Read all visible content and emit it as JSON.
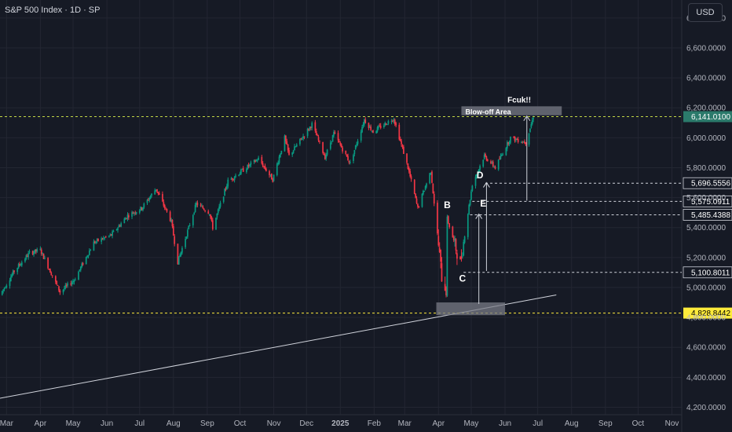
{
  "title": "S&P 500 Index · 1D · SP",
  "currency": "USD",
  "chart_data": {
    "type": "candlestick",
    "symbol": "S&P 500 Index",
    "interval": "1D",
    "exchange": "SP",
    "y_axis": {
      "ticks": [
        {
          "value": 4200,
          "label": "4,200.0000"
        },
        {
          "value": 4400,
          "label": "4,400.0000"
        },
        {
          "value": 4600,
          "label": "4,600.0000"
        },
        {
          "value": 4800,
          "label": "4,800.0000"
        },
        {
          "value": 5000,
          "label": "5,000.0000"
        },
        {
          "value": 5200,
          "label": "5,200.0000"
        },
        {
          "value": 5400,
          "label": "5,400.0000"
        },
        {
          "value": 5600,
          "label": "5,600.0000"
        },
        {
          "value": 5800,
          "label": "5,800.0000"
        },
        {
          "value": 6000,
          "label": "6,000.0000"
        },
        {
          "value": 6200,
          "label": "6,200.0000"
        },
        {
          "value": 6400,
          "label": "6,400.0000"
        },
        {
          "value": 6600,
          "label": "6,600.0000"
        },
        {
          "value": 6800,
          "label": "6,800.0000"
        }
      ],
      "range": [
        4150,
        6920
      ]
    },
    "x_axis": {
      "ticks": [
        {
          "date": "2024-03-01",
          "label": "Mar"
        },
        {
          "date": "2024-04-01",
          "label": "Apr"
        },
        {
          "date": "2024-05-01",
          "label": "May"
        },
        {
          "date": "2024-06-01",
          "label": "Jun"
        },
        {
          "date": "2024-07-01",
          "label": "Jul"
        },
        {
          "date": "2024-08-01",
          "label": "Aug"
        },
        {
          "date": "2024-09-01",
          "label": "Sep"
        },
        {
          "date": "2024-10-01",
          "label": "Oct"
        },
        {
          "date": "2024-11-01",
          "label": "Nov"
        },
        {
          "date": "2024-12-01",
          "label": "Dec"
        },
        {
          "date": "2025-01-01",
          "label": "2025",
          "bold": true
        },
        {
          "date": "2025-02-01",
          "label": "Feb"
        },
        {
          "date": "2025-03-01",
          "label": "Mar"
        },
        {
          "date": "2025-04-01",
          "label": "Apr"
        },
        {
          "date": "2025-05-01",
          "label": "May"
        },
        {
          "date": "2025-06-01",
          "label": "Jun"
        },
        {
          "date": "2025-07-01",
          "label": "Jul"
        },
        {
          "date": "2025-08-01",
          "label": "Aug"
        },
        {
          "date": "2025-09-01",
          "label": "Sep"
        },
        {
          "date": "2025-10-01",
          "label": "Oct"
        },
        {
          "date": "2025-11-01",
          "label": "Nov"
        }
      ],
      "range": [
        "2024-02-24",
        "2025-11-10"
      ]
    },
    "price_path": [
      [
        "2024-02-24",
        4950
      ],
      [
        "2024-03-08",
        5110
      ],
      [
        "2024-03-22",
        5230
      ],
      [
        "2024-04-01",
        5250
      ],
      [
        "2024-04-19",
        4970
      ],
      [
        "2024-05-02",
        5050
      ],
      [
        "2024-05-20",
        5300
      ],
      [
        "2024-06-05",
        5350
      ],
      [
        "2024-06-20",
        5480
      ],
      [
        "2024-07-03",
        5530
      ],
      [
        "2024-07-16",
        5660
      ],
      [
        "2024-07-30",
        5440
      ],
      [
        "2024-08-05",
        5170
      ],
      [
        "2024-08-22",
        5560
      ],
      [
        "2024-09-03",
        5500
      ],
      [
        "2024-09-06",
        5400
      ],
      [
        "2024-09-20",
        5710
      ],
      [
        "2024-10-18",
        5860
      ],
      [
        "2024-10-31",
        5720
      ],
      [
        "2024-11-11",
        6000
      ],
      [
        "2024-11-15",
        5880
      ],
      [
        "2024-12-06",
        6090
      ],
      [
        "2024-12-18",
        5870
      ],
      [
        "2024-12-26",
        6030
      ],
      [
        "2025-01-10",
        5830
      ],
      [
        "2025-01-23",
        6120
      ],
      [
        "2025-01-31",
        6040
      ],
      [
        "2025-02-19",
        6130
      ],
      [
        "2025-03-04",
        5800
      ],
      [
        "2025-03-13",
        5530
      ],
      [
        "2025-03-25",
        5780
      ],
      [
        "2025-04-04",
        5070
      ],
      [
        "2025-04-08",
        4980
      ],
      [
        "2025-04-09",
        5460
      ],
      [
        "2025-04-21",
        5160
      ],
      [
        "2025-05-02",
        5690
      ],
      [
        "2025-05-13",
        5880
      ],
      [
        "2025-05-23",
        5800
      ],
      [
        "2025-06-06",
        6000
      ],
      [
        "2025-06-20",
        5970
      ],
      [
        "2025-06-27",
        6140
      ]
    ],
    "last_price": {
      "value": 6141.01,
      "label": "6,141.0100"
    },
    "horizontal_levels": [
      {
        "value": 6141.01,
        "label": "6,141.0100",
        "style": "dashed",
        "color": "#c3d845",
        "tag_color": "#2b7a6b"
      },
      {
        "value": 4828.8442,
        "label": "4,828.8442",
        "style": "dashed",
        "color": "#ffeb3b",
        "tag_color": "#ffeb3b"
      },
      {
        "value": 5696.5556,
        "label": "5,696.5556",
        "style": "dashed",
        "color": "#d1d4dc",
        "tag_color": "#161a25"
      },
      {
        "value": 5575.0911,
        "label": "5,575.0911",
        "style": "dashed",
        "color": "#d1d4dc",
        "tag_color": "#161a25"
      },
      {
        "value": 5485.4388,
        "label": "5,485.4388",
        "style": "dashed",
        "color": "#d1d4dc",
        "tag_color": "#161a25"
      },
      {
        "value": 5100.8011,
        "label": "5,100.8011",
        "style": "dashed",
        "color": "#d1d4dc",
        "tag_color": "#161a25"
      }
    ],
    "annotations": [
      {
        "text": "Blow-off Area",
        "kind": "box",
        "x0": "2025-04-22",
        "x1": "2025-07-23",
        "y0": 6150,
        "y1": 6210
      },
      {
        "text": "Fcuk!!",
        "kind": "label",
        "x": "2025-06-14",
        "y": 6235
      },
      {
        "text": "",
        "kind": "box",
        "x0": "2025-03-30",
        "x1": "2025-06-01",
        "y0": 4815,
        "y1": 4900
      },
      {
        "text": "B",
        "kind": "label",
        "x": "2025-04-09",
        "y": 5530
      },
      {
        "text": "C",
        "kind": "label",
        "x": "2025-04-23",
        "y": 5040
      },
      {
        "text": "D",
        "kind": "label",
        "x": "2025-05-09",
        "y": 5730
      },
      {
        "text": "E",
        "kind": "label",
        "x": "2025-05-12",
        "y": 5540
      }
    ],
    "arrows": [
      {
        "from": [
          "2025-05-08",
          4890
        ],
        "to": [
          "2025-05-08",
          5490
        ]
      },
      {
        "from": [
          "2025-05-15",
          5110
        ],
        "to": [
          "2025-05-15",
          5700
        ]
      },
      {
        "from": [
          "2025-06-21",
          5580
        ],
        "to": [
          "2025-06-21",
          6145
        ]
      }
    ],
    "trendline": {
      "from": [
        "2024-02-24",
        4260
      ],
      "to": [
        "2025-07-18",
        4950
      ]
    },
    "colors": {
      "up": "#089981",
      "down": "#f23645",
      "background": "#161a25",
      "grid": "#232632"
    }
  }
}
